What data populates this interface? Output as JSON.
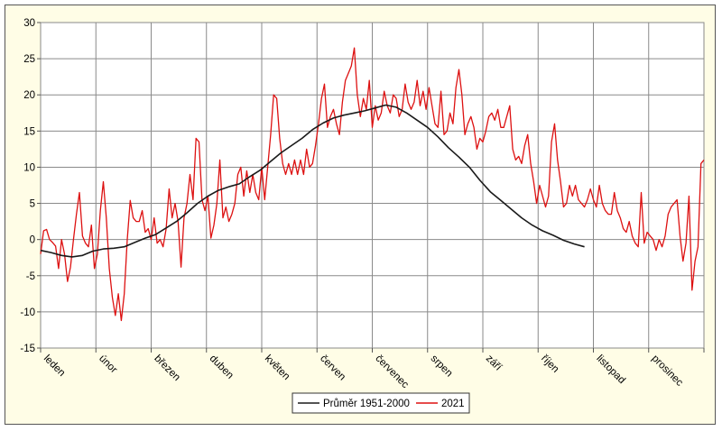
{
  "chart_data": {
    "type": "line",
    "title": "",
    "xlabel": "",
    "ylabel": "",
    "ylim": [
      -15,
      30
    ],
    "yticks": [
      -15,
      -10,
      -5,
      0,
      5,
      10,
      15,
      20,
      25,
      30
    ],
    "grid": true,
    "legend_position": "bottom-center",
    "x_categories": [
      "leden",
      "únor",
      "březen",
      "duben",
      "květen",
      "červen",
      "červenec",
      "srpen",
      "září",
      "říjen",
      "listopad",
      "prosinec"
    ],
    "series": [
      {
        "name": "Průměr 1951-2000",
        "color": "#1a1a1a",
        "points": [
          [
            1,
            -1.5
          ],
          [
            8,
            -1.8
          ],
          [
            15,
            -2.2
          ],
          [
            22,
            -2.4
          ],
          [
            29,
            -2.2
          ],
          [
            36,
            -1.6
          ],
          [
            43,
            -1.3
          ],
          [
            50,
            -1.2
          ],
          [
            57,
            -1.0
          ],
          [
            64,
            -0.4
          ],
          [
            71,
            0.2
          ],
          [
            78,
            0.7
          ],
          [
            85,
            1.6
          ],
          [
            92,
            2.5
          ],
          [
            99,
            3.7
          ],
          [
            106,
            5.0
          ],
          [
            113,
            6.0
          ],
          [
            120,
            6.8
          ],
          [
            127,
            7.3
          ],
          [
            134,
            7.7
          ],
          [
            141,
            8.7
          ],
          [
            148,
            9.6
          ],
          [
            155,
            10.8
          ],
          [
            162,
            12.0
          ],
          [
            169,
            13.0
          ],
          [
            176,
            14.0
          ],
          [
            183,
            15.2
          ],
          [
            190,
            16.1
          ],
          [
            197,
            16.8
          ],
          [
            204,
            17.2
          ],
          [
            211,
            17.5
          ],
          [
            218,
            17.8
          ],
          [
            225,
            18.2
          ],
          [
            232,
            18.6
          ],
          [
            239,
            18.3
          ],
          [
            246,
            17.5
          ],
          [
            253,
            16.5
          ],
          [
            260,
            15.5
          ],
          [
            267,
            14.2
          ],
          [
            274,
            12.7
          ],
          [
            281,
            11.4
          ],
          [
            288,
            10.0
          ],
          [
            295,
            8.2
          ],
          [
            302,
            6.6
          ],
          [
            309,
            5.4
          ],
          [
            316,
            4.2
          ],
          [
            323,
            3.0
          ],
          [
            330,
            2.0
          ],
          [
            337,
            1.2
          ],
          [
            344,
            0.6
          ],
          [
            351,
            -0.1
          ],
          [
            358,
            -0.6
          ],
          [
            365,
            -1.0
          ]
        ]
      },
      {
        "name": "2021",
        "color": "#dd1111",
        "points": [
          [
            1,
            -2.0
          ],
          [
            3,
            1.2
          ],
          [
            5,
            1.4
          ],
          [
            7,
            0.0
          ],
          [
            9,
            -0.4
          ],
          [
            11,
            -0.9
          ],
          [
            13,
            -4.0
          ],
          [
            15,
            0.0
          ],
          [
            17,
            -2.0
          ],
          [
            19,
            -5.8
          ],
          [
            21,
            -3.8
          ],
          [
            23,
            0.0
          ],
          [
            25,
            3.5
          ],
          [
            27,
            6.5
          ],
          [
            29,
            0.5
          ],
          [
            31,
            -0.5
          ],
          [
            33,
            -1.0
          ],
          [
            35,
            2.0
          ],
          [
            37,
            -4.0
          ],
          [
            39,
            -2.0
          ],
          [
            41,
            4.0
          ],
          [
            43,
            8.0
          ],
          [
            45,
            3.0
          ],
          [
            47,
            -4.0
          ],
          [
            49,
            -8.0
          ],
          [
            51,
            -10.5
          ],
          [
            53,
            -7.5
          ],
          [
            55,
            -11.2
          ],
          [
            57,
            -7.5
          ],
          [
            59,
            0.0
          ],
          [
            61,
            5.4
          ],
          [
            63,
            3.0
          ],
          [
            65,
            2.5
          ],
          [
            67,
            2.5
          ],
          [
            69,
            4.0
          ],
          [
            71,
            1.0
          ],
          [
            73,
            1.5
          ],
          [
            75,
            0.0
          ],
          [
            77,
            3.0
          ],
          [
            79,
            -0.5
          ],
          [
            81,
            0.0
          ],
          [
            83,
            -1.0
          ],
          [
            85,
            1.5
          ],
          [
            87,
            7.0
          ],
          [
            89,
            3.0
          ],
          [
            91,
            5.0
          ],
          [
            93,
            2.5
          ],
          [
            95,
            -3.8
          ],
          [
            97,
            3.0
          ],
          [
            99,
            5.0
          ],
          [
            101,
            9.0
          ],
          [
            103,
            5.5
          ],
          [
            105,
            14.0
          ],
          [
            107,
            13.5
          ],
          [
            109,
            5.5
          ],
          [
            111,
            4.0
          ],
          [
            113,
            6.0
          ],
          [
            115,
            0.2
          ],
          [
            117,
            2.0
          ],
          [
            119,
            5.0
          ],
          [
            121,
            11.0
          ],
          [
            123,
            3.0
          ],
          [
            125,
            4.5
          ],
          [
            127,
            2.5
          ],
          [
            129,
            3.5
          ],
          [
            131,
            5.0
          ],
          [
            133,
            9.0
          ],
          [
            135,
            10.0
          ],
          [
            137,
            6.0
          ],
          [
            139,
            9.5
          ],
          [
            141,
            6.5
          ],
          [
            143,
            9.0
          ],
          [
            145,
            6.5
          ],
          [
            147,
            5.5
          ],
          [
            149,
            10.0
          ],
          [
            151,
            5.5
          ],
          [
            153,
            10.0
          ],
          [
            155,
            14.5
          ],
          [
            157,
            20.0
          ],
          [
            159,
            19.5
          ],
          [
            161,
            14.0
          ],
          [
            163,
            10.5
          ],
          [
            165,
            9.0
          ],
          [
            167,
            10.5
          ],
          [
            169,
            9.0
          ],
          [
            171,
            11.0
          ],
          [
            173,
            9.0
          ],
          [
            175,
            11.0
          ],
          [
            177,
            9.0
          ],
          [
            179,
            12.5
          ],
          [
            181,
            10.0
          ],
          [
            183,
            10.5
          ],
          [
            185,
            13.0
          ],
          [
            187,
            16.0
          ],
          [
            189,
            19.5
          ],
          [
            191,
            21.5
          ],
          [
            193,
            15.5
          ],
          [
            195,
            17.0
          ],
          [
            197,
            18.0
          ],
          [
            199,
            16.0
          ],
          [
            201,
            14.5
          ],
          [
            203,
            19.0
          ],
          [
            205,
            22.0
          ],
          [
            207,
            23.0
          ],
          [
            209,
            24.0
          ],
          [
            211,
            26.5
          ],
          [
            213,
            20.0
          ],
          [
            215,
            17.0
          ],
          [
            217,
            19.5
          ],
          [
            219,
            18.0
          ],
          [
            221,
            22.0
          ],
          [
            223,
            15.5
          ],
          [
            225,
            18.5
          ],
          [
            227,
            16.5
          ],
          [
            229,
            17.5
          ],
          [
            231,
            20.5
          ],
          [
            233,
            18.5
          ],
          [
            235,
            17.5
          ],
          [
            237,
            20.0
          ],
          [
            239,
            19.5
          ],
          [
            241,
            17.0
          ],
          [
            243,
            18.0
          ],
          [
            245,
            21.5
          ],
          [
            247,
            19.0
          ],
          [
            249,
            18.0
          ],
          [
            251,
            19.0
          ],
          [
            253,
            22.0
          ],
          [
            255,
            18.5
          ],
          [
            257,
            20.5
          ],
          [
            259,
            18.0
          ],
          [
            261,
            21.0
          ],
          [
            263,
            18.5
          ],
          [
            265,
            16.0
          ],
          [
            267,
            15.5
          ],
          [
            269,
            20.5
          ],
          [
            271,
            14.5
          ],
          [
            273,
            15.0
          ],
          [
            275,
            17.5
          ],
          [
            277,
            16.0
          ],
          [
            279,
            21.0
          ],
          [
            281,
            23.5
          ],
          [
            283,
            20.0
          ],
          [
            285,
            14.5
          ],
          [
            287,
            16.0
          ],
          [
            289,
            17.0
          ],
          [
            291,
            15.5
          ],
          [
            293,
            12.5
          ],
          [
            295,
            14.0
          ],
          [
            297,
            13.5
          ],
          [
            299,
            15.0
          ],
          [
            301,
            17.0
          ],
          [
            303,
            17.5
          ],
          [
            305,
            16.5
          ],
          [
            307,
            18.0
          ],
          [
            309,
            15.5
          ],
          [
            311,
            15.5
          ],
          [
            313,
            17.0
          ],
          [
            315,
            18.5
          ],
          [
            317,
            12.5
          ],
          [
            319,
            11.0
          ],
          [
            321,
            11.5
          ],
          [
            323,
            10.5
          ],
          [
            325,
            13.0
          ],
          [
            327,
            14.5
          ],
          [
            329,
            10.5
          ],
          [
            331,
            8.0
          ],
          [
            333,
            5.0
          ],
          [
            335,
            7.5
          ],
          [
            337,
            6.0
          ],
          [
            339,
            4.5
          ],
          [
            341,
            6.0
          ],
          [
            343,
            13.5
          ],
          [
            345,
            16.0
          ],
          [
            347,
            11.0
          ],
          [
            349,
            8.0
          ],
          [
            351,
            4.5
          ],
          [
            353,
            5.0
          ],
          [
            355,
            7.5
          ],
          [
            357,
            6.0
          ],
          [
            359,
            7.5
          ],
          [
            361,
            5.5
          ],
          [
            363,
            5.0
          ],
          [
            365,
            4.5
          ],
          [
            367,
            5.5
          ],
          [
            369,
            7.0
          ],
          [
            371,
            5.5
          ],
          [
            373,
            4.5
          ],
          [
            375,
            7.5
          ],
          [
            377,
            5.0
          ],
          [
            379,
            4.0
          ],
          [
            381,
            3.5
          ],
          [
            383,
            3.5
          ],
          [
            385,
            6.5
          ],
          [
            387,
            4.0
          ],
          [
            389,
            3.0
          ],
          [
            391,
            1.5
          ],
          [
            393,
            1.0
          ],
          [
            395,
            2.5
          ],
          [
            397,
            0.5
          ],
          [
            399,
            -0.5
          ],
          [
            401,
            -1.0
          ],
          [
            403,
            6.5
          ],
          [
            405,
            -0.5
          ],
          [
            407,
            1.0
          ],
          [
            409,
            0.5
          ],
          [
            411,
            0.0
          ],
          [
            413,
            -1.5
          ],
          [
            415,
            0.0
          ],
          [
            417,
            -1.0
          ],
          [
            419,
            0.5
          ],
          [
            421,
            3.5
          ],
          [
            423,
            4.5
          ],
          [
            425,
            5.0
          ],
          [
            427,
            5.5
          ],
          [
            429,
            0.5
          ],
          [
            431,
            -3.0
          ],
          [
            433,
            -0.5
          ],
          [
            435,
            6.0
          ],
          [
            437,
            -7.0
          ],
          [
            439,
            -3.0
          ],
          [
            441,
            -1.0
          ],
          [
            443,
            10.5
          ],
          [
            445,
            11.0
          ]
        ]
      }
    ]
  }
}
